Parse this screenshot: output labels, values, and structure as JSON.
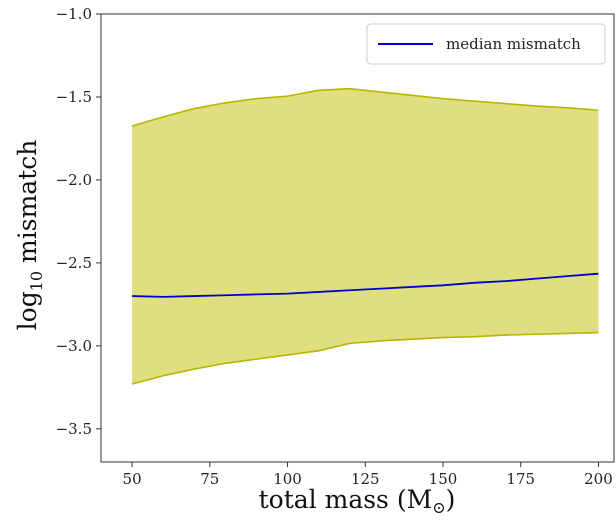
{
  "chart_data": {
    "type": "area",
    "xlabel_text": "total mass (M",
    "xlabel_sub": "⊙",
    "xlabel_close": ")",
    "ylabel_base": "log",
    "ylabel_sub": "10",
    "ylabel_rest": " mismatch",
    "xlim": [
      40,
      205
    ],
    "ylim": [
      -3.7,
      -1.0
    ],
    "xticks": [
      50,
      75,
      100,
      125,
      150,
      175,
      200
    ],
    "xtick_labels": [
      "50",
      "75",
      "100",
      "125",
      "150",
      "175",
      "200"
    ],
    "yticks": [
      -3.5,
      -3.0,
      -2.5,
      -2.0,
      -1.5,
      -1.0
    ],
    "ytick_labels": [
      "−3.5",
      "−3.0",
      "−2.5",
      "−2.0",
      "−1.5",
      "−1.0"
    ],
    "x": [
      50,
      60,
      70,
      80,
      90,
      100,
      110,
      120,
      130,
      140,
      150,
      160,
      170,
      180,
      190,
      200
    ],
    "series": [
      {
        "name": "median mismatch",
        "color": "#0000cc",
        "values": [
          -2.7,
          -2.705,
          -2.7,
          -2.695,
          -2.69,
          -2.685,
          -2.675,
          -2.665,
          -2.655,
          -2.645,
          -2.635,
          -2.62,
          -2.61,
          -2.595,
          -2.58,
          -2.565
        ]
      }
    ],
    "band": {
      "fill_color": "#dfdf80",
      "edge_color": "#b5b500",
      "upper": [
        -1.675,
        -1.62,
        -1.57,
        -1.535,
        -1.51,
        -1.495,
        -1.46,
        -1.45,
        -1.47,
        -1.49,
        -1.51,
        -1.525,
        -1.54,
        -1.555,
        -1.565,
        -1.58
      ],
      "lower": [
        -3.23,
        -3.18,
        -3.14,
        -3.105,
        -3.08,
        -3.055,
        -3.03,
        -2.985,
        -2.97,
        -2.96,
        -2.95,
        -2.945,
        -2.935,
        -2.93,
        -2.925,
        -2.92
      ]
    },
    "legend": {
      "placement": "top-right"
    },
    "grid": false
  }
}
